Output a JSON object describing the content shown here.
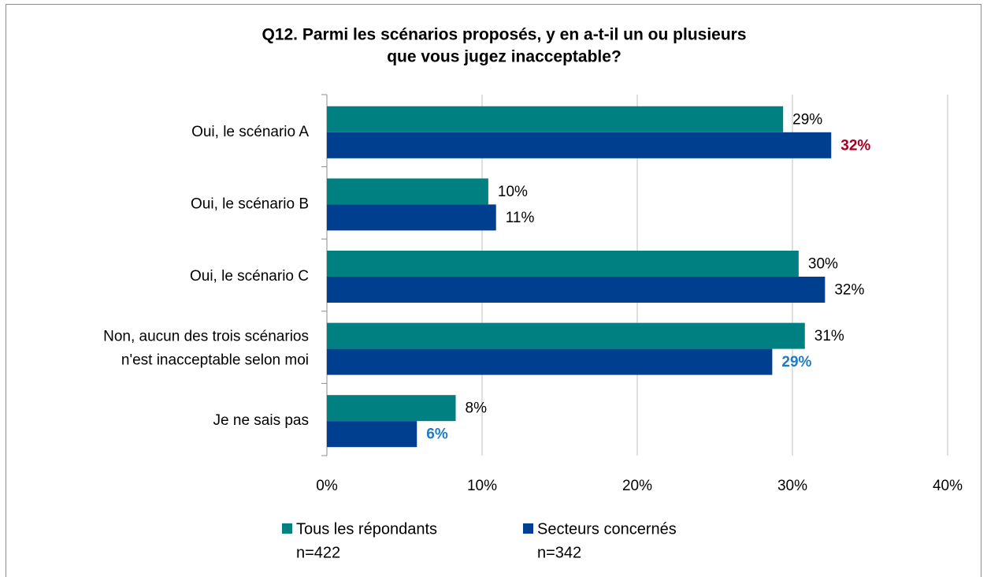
{
  "chart_data": {
    "type": "hbar",
    "title": [
      "Q12. Parmi les scénarios proposés, y en a-t-il un ou plusieurs",
      "que vous jugez inacceptable?"
    ],
    "categories": [
      [
        "Oui, le scénario A"
      ],
      [
        "Oui, le scénario B"
      ],
      [
        "Oui, le scénario C"
      ],
      [
        "Non, aucun des trois scénarios",
        "n'est inacceptable selon moi"
      ],
      [
        "Je ne sais pas"
      ]
    ],
    "series": [
      {
        "name": "Tous les répondants",
        "sample": "n=422",
        "color": "#008080",
        "values": [
          29.4,
          10.4,
          30.4,
          30.8,
          8.3
        ],
        "value_labels": [
          "29%",
          "10%",
          "30%",
          "31%",
          "8%"
        ],
        "label_colors": [
          "#000000",
          "#000000",
          "#000000",
          "#000000",
          "#000000"
        ]
      },
      {
        "name": "Secteurs concernés",
        "sample": "n=342",
        "color": "#003f8f",
        "values": [
          32.5,
          10.9,
          32.1,
          28.7,
          5.8
        ],
        "value_labels": [
          "32%",
          "11%",
          "32%",
          "29%",
          "6%"
        ],
        "label_colors": [
          "#a50021",
          "#000000",
          "#000000",
          "#1f7bc4",
          "#1f7bc4"
        ]
      }
    ],
    "xlim": [
      0,
      40
    ],
    "xticks": [
      {
        "value": 0,
        "label": "0%"
      },
      {
        "value": 10,
        "label": "10%"
      },
      {
        "value": 20,
        "label": "20%"
      },
      {
        "value": 30,
        "label": "30%"
      },
      {
        "value": 40,
        "label": "40%"
      }
    ],
    "grid": true,
    "legend": "bottom"
  }
}
